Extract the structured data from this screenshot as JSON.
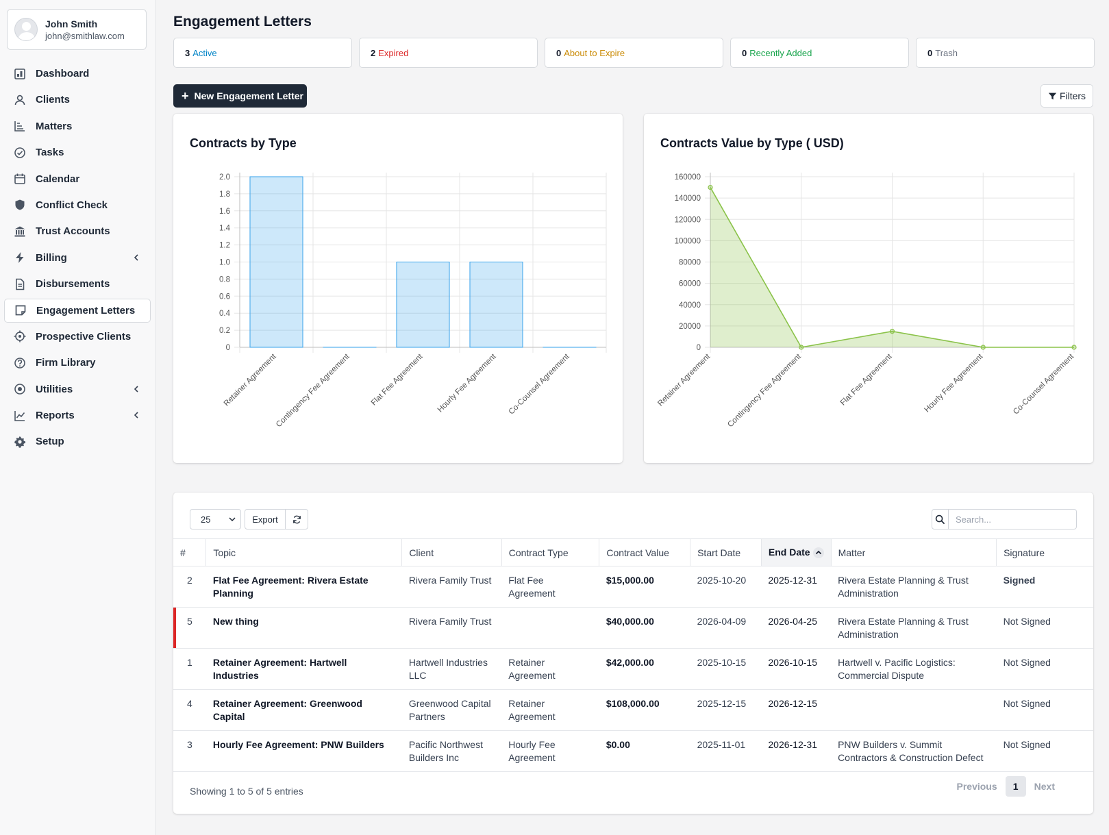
{
  "user": {
    "name": "John Smith",
    "email": "john@smithlaw.com"
  },
  "sidebar": {
    "items": [
      {
        "label": "Dashboard",
        "icon": "dashboard-icon"
      },
      {
        "label": "Clients",
        "icon": "user-icon"
      },
      {
        "label": "Matters",
        "icon": "matters-chart-icon"
      },
      {
        "label": "Tasks",
        "icon": "check-circle-icon"
      },
      {
        "label": "Calendar",
        "icon": "calendar-icon"
      },
      {
        "label": "Conflict Check",
        "icon": "shield-icon"
      },
      {
        "label": "Trust Accounts",
        "icon": "bank-icon"
      },
      {
        "label": "Billing",
        "icon": "bolt-icon",
        "chevron": true
      },
      {
        "label": "Disbursements",
        "icon": "document-icon"
      },
      {
        "label": "Engagement Letters",
        "icon": "sticky-note-icon",
        "active": true
      },
      {
        "label": "Prospective Clients",
        "icon": "crosshair-icon"
      },
      {
        "label": "Firm Library",
        "icon": "help-circle-icon"
      },
      {
        "label": "Utilities",
        "icon": "dot-circle-icon",
        "chevron": true
      },
      {
        "label": "Reports",
        "icon": "line-chart-icon",
        "chevron": true
      },
      {
        "label": "Setup",
        "icon": "gear-icon"
      }
    ]
  },
  "page": {
    "title": "Engagement Letters"
  },
  "stats": [
    {
      "count": "3",
      "label": "Active",
      "color": "#0284c7"
    },
    {
      "count": "2",
      "label": "Expired",
      "color": "#dc2626"
    },
    {
      "count": "0",
      "label": "About to Expire",
      "color": "#ca8a04"
    },
    {
      "count": "0",
      "label": "Recently Added",
      "color": "#16a34a"
    },
    {
      "count": "0",
      "label": "Trash",
      "color": "#6b7280"
    }
  ],
  "toolbar": {
    "new_label": "New Engagement Letter",
    "filters_label": "Filters"
  },
  "chart_data": [
    {
      "type": "bar",
      "title": "Contracts by Type",
      "categories": [
        "Retainer Agreement",
        "Contingency Fee Agreement",
        "Flat Fee Agreement",
        "Hourly Fee Agreement",
        "Co-Counsel Agreement"
      ],
      "values": [
        2,
        0,
        1,
        1,
        0
      ],
      "ylim": [
        0,
        2
      ],
      "yticks": [
        "0",
        "0.2",
        "0.4",
        "0.6",
        "0.8",
        "1.0",
        "1.2",
        "1.4",
        "1.6",
        "1.8",
        "2.0"
      ],
      "grid": true,
      "color": "#36a2eb"
    },
    {
      "type": "area",
      "title": "Contracts Value by Type ( USD)",
      "categories": [
        "Retainer Agreement",
        "Contingency Fee Agreement",
        "Flat Fee Agreement",
        "Hourly Fee Agreement",
        "Co-Counsel Agreement"
      ],
      "values": [
        150000,
        0,
        15000,
        0,
        0
      ],
      "ylim": [
        0,
        160000
      ],
      "yticks": [
        "0",
        "20000",
        "40000",
        "60000",
        "80000",
        "100000",
        "120000",
        "140000",
        "160000"
      ],
      "grid": true,
      "color": "#8bc34a"
    }
  ],
  "table": {
    "page_length": "25",
    "export_label": "Export",
    "search_placeholder": "Search...",
    "columns": [
      "#",
      "Topic",
      "Client",
      "Contract Type",
      "Contract Value",
      "Start Date",
      "End Date",
      "Matter",
      "Signature"
    ],
    "rows": [
      {
        "id": "2",
        "topic": "Flat Fee Agreement: Rivera Estate Planning",
        "client": "Rivera Family Trust",
        "type": "Flat Fee Agreement",
        "value": "$15,000.00",
        "start": "2025-10-20",
        "end": "2025-12-31",
        "matter": "Rivera Estate Planning & Trust Administration",
        "signature": "Signed",
        "signed": true,
        "flagged": false
      },
      {
        "id": "5",
        "topic": "New thing",
        "client": "Rivera Family Trust",
        "type": "",
        "value": "$40,000.00",
        "start": "2026-04-09",
        "end": "2026-04-25",
        "matter": "Rivera Estate Planning & Trust Administration",
        "signature": "Not Signed",
        "signed": false,
        "flagged": true
      },
      {
        "id": "1",
        "topic": "Retainer Agreement: Hartwell Industries",
        "client": "Hartwell Industries LLC",
        "type": "Retainer Agreement",
        "value": "$42,000.00",
        "start": "2025-10-15",
        "end": "2026-10-15",
        "matter": "Hartwell v. Pacific Logistics: Commercial Dispute",
        "signature": "Not Signed",
        "signed": false,
        "flagged": false
      },
      {
        "id": "4",
        "topic": "Retainer Agreement: Greenwood Capital",
        "client": "Greenwood Capital Partners",
        "type": "Retainer Agreement",
        "value": "$108,000.00",
        "start": "2025-12-15",
        "end": "2026-12-15",
        "matter": "",
        "signature": "Not Signed",
        "signed": false,
        "flagged": false
      },
      {
        "id": "3",
        "topic": "Hourly Fee Agreement: PNW Builders",
        "client": "Pacific Northwest Builders Inc",
        "type": "Hourly Fee Agreement",
        "value": "$0.00",
        "start": "2025-11-01",
        "end": "2026-12-31",
        "matter": "PNW Builders v. Summit Contractors & Construction Defect",
        "signature": "Not Signed",
        "signed": false,
        "flagged": false
      }
    ],
    "info": "Showing 1 to 5 of 5 entries",
    "pager": {
      "previous": "Previous",
      "current": "1",
      "next": "Next"
    }
  }
}
